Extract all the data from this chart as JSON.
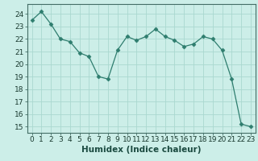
{
  "x": [
    0,
    1,
    2,
    3,
    4,
    5,
    6,
    7,
    8,
    9,
    10,
    11,
    12,
    13,
    14,
    15,
    16,
    17,
    18,
    19,
    20,
    21,
    22,
    23
  ],
  "y": [
    23.5,
    24.2,
    23.2,
    22.0,
    21.8,
    20.9,
    20.6,
    19.0,
    18.8,
    21.1,
    22.2,
    21.9,
    22.2,
    22.8,
    22.2,
    21.9,
    21.4,
    21.6,
    22.2,
    22.0,
    21.1,
    18.8,
    15.2,
    15.0
  ],
  "line_color": "#2e7d6e",
  "marker": "D",
  "marker_size": 2.5,
  "bg_color": "#cceee8",
  "grid_color": "#aad8d0",
  "xlabel": "Humidex (Indice chaleur)",
  "ylabel_ticks": [
    15,
    16,
    17,
    18,
    19,
    20,
    21,
    22,
    23,
    24
  ],
  "xlim": [
    -0.5,
    23.5
  ],
  "ylim": [
    14.5,
    24.8
  ],
  "xlabel_fontsize": 7.5,
  "tick_fontsize": 6.5
}
